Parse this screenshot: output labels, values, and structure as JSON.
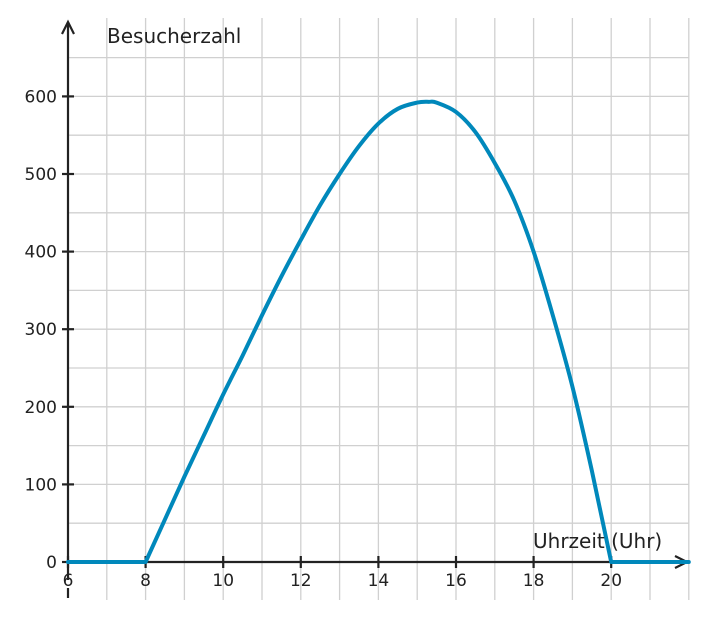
{
  "chart_data": {
    "type": "line",
    "xlabel": "Uhrzeit (Uhr)",
    "ylabel": "Besucherzahl",
    "xlim": [
      6,
      22
    ],
    "ylim": [
      -100,
      600
    ],
    "x_ticks": [
      6,
      8,
      10,
      12,
      14,
      16,
      18,
      20
    ],
    "y_ticks": [
      0,
      100,
      200,
      300,
      400,
      500,
      600
    ],
    "grid": true,
    "line_color": "#0088bb",
    "series": [
      {
        "x": [
          6,
          8,
          8.5,
          9,
          9.5,
          10,
          10.5,
          11,
          11.5,
          12,
          12.5,
          13,
          13.5,
          14,
          14.5,
          15,
          15.3,
          15.5,
          16,
          16.5,
          17,
          17.5,
          18,
          18.5,
          19,
          19.5,
          20,
          22
        ],
        "y": [
          0,
          0,
          55,
          110,
          163,
          216,
          266,
          318,
          368,
          415,
          460,
          500,
          536,
          565,
          584,
          592,
          593,
          592,
          580,
          554,
          514,
          466,
          400,
          317,
          226,
          118,
          0,
          0
        ]
      }
    ]
  }
}
